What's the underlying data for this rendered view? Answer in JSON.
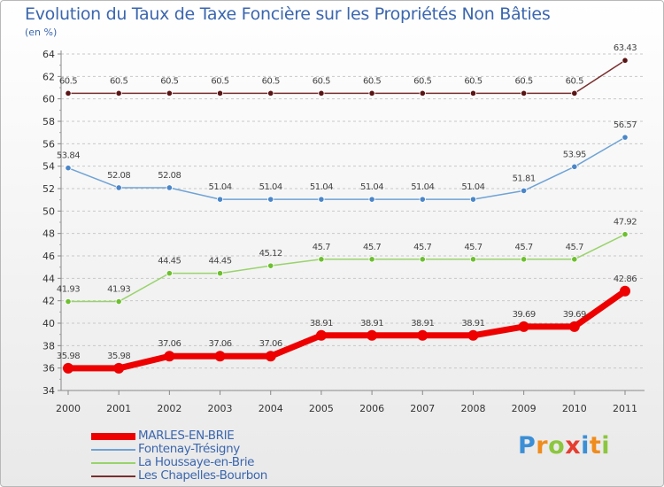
{
  "title": "Evolution du Taux de Taxe Foncière sur les Propriétés Non Bâties",
  "subtitle": "(en %)",
  "logo": {
    "letters": [
      "P",
      "r",
      "o",
      "x",
      "i",
      "t",
      "i"
    ],
    "colors": [
      "#3b8fd6",
      "#f08c1c",
      "#8cc63f",
      "#e53d30",
      "#3b8fd6",
      "#f08c1c",
      "#8cc63f"
    ]
  },
  "chart_data": {
    "type": "line",
    "title": "Evolution du Taux de Taxe Foncière sur les Propriétés Non Bâties",
    "ylabel": "(en %)",
    "xlabel": "",
    "ylim": [
      34,
      64
    ],
    "yticks": [
      34,
      36,
      38,
      40,
      42,
      44,
      46,
      48,
      50,
      52,
      54,
      56,
      58,
      60,
      62,
      64
    ],
    "categories": [
      "2000",
      "2001",
      "2002",
      "2003",
      "2004",
      "2005",
      "2006",
      "2007",
      "2008",
      "2009",
      "2010",
      "2011"
    ],
    "grid": "horizontal dashed",
    "series": [
      {
        "name": "MARLES-EN-BRIE",
        "color": "#ee0000",
        "marker": "#cc0000",
        "values": [
          35.98,
          35.98,
          37.06,
          37.06,
          37.06,
          38.91,
          38.91,
          38.91,
          38.91,
          39.69,
          39.69,
          42.86
        ],
        "labels": [
          "35.98",
          "35.98",
          "37.06",
          "37.06",
          "37.06",
          "38.91",
          "38.91",
          "38.91",
          "38.91",
          "39.69",
          "39.69",
          "42.86"
        ]
      },
      {
        "name": "Fontenay-Trésigny",
        "color": "#6fa3d6",
        "marker": "#4a86c8",
        "values": [
          53.84,
          52.08,
          52.08,
          51.04,
          51.04,
          51.04,
          51.04,
          51.04,
          51.04,
          51.81,
          53.95,
          56.57
        ],
        "labels": [
          "53.84",
          "52.08",
          "52.08",
          "51.04",
          "51.04",
          "51.04",
          "51.04",
          "51.04",
          "51.04",
          "51.81",
          "53.95",
          "56.57"
        ]
      },
      {
        "name": "La Houssaye-en-Brie",
        "color": "#99d36b",
        "marker": "#6dbf2f",
        "values": [
          41.93,
          41.93,
          44.45,
          44.45,
          45.12,
          45.7,
          45.7,
          45.7,
          45.7,
          45.7,
          45.7,
          47.92
        ],
        "labels": [
          "41.93",
          "41.93",
          "44.45",
          "44.45",
          "45.12",
          "45.7",
          "45.7",
          "45.7",
          "45.7",
          "45.7",
          "45.7",
          "47.92"
        ]
      },
      {
        "name": "Les Chapelles-Bourbon",
        "color": "#7a2e2e",
        "marker": "#5a1414",
        "values": [
          60.5,
          60.5,
          60.5,
          60.5,
          60.5,
          60.5,
          60.5,
          60.5,
          60.5,
          60.5,
          60.5,
          63.43
        ],
        "labels": [
          "60.5",
          "60.5",
          "60.5",
          "60.5",
          "60.5",
          "60.5",
          "60.5",
          "60.5",
          "60.5",
          "60.5",
          "60.5",
          "63.43"
        ]
      }
    ]
  }
}
